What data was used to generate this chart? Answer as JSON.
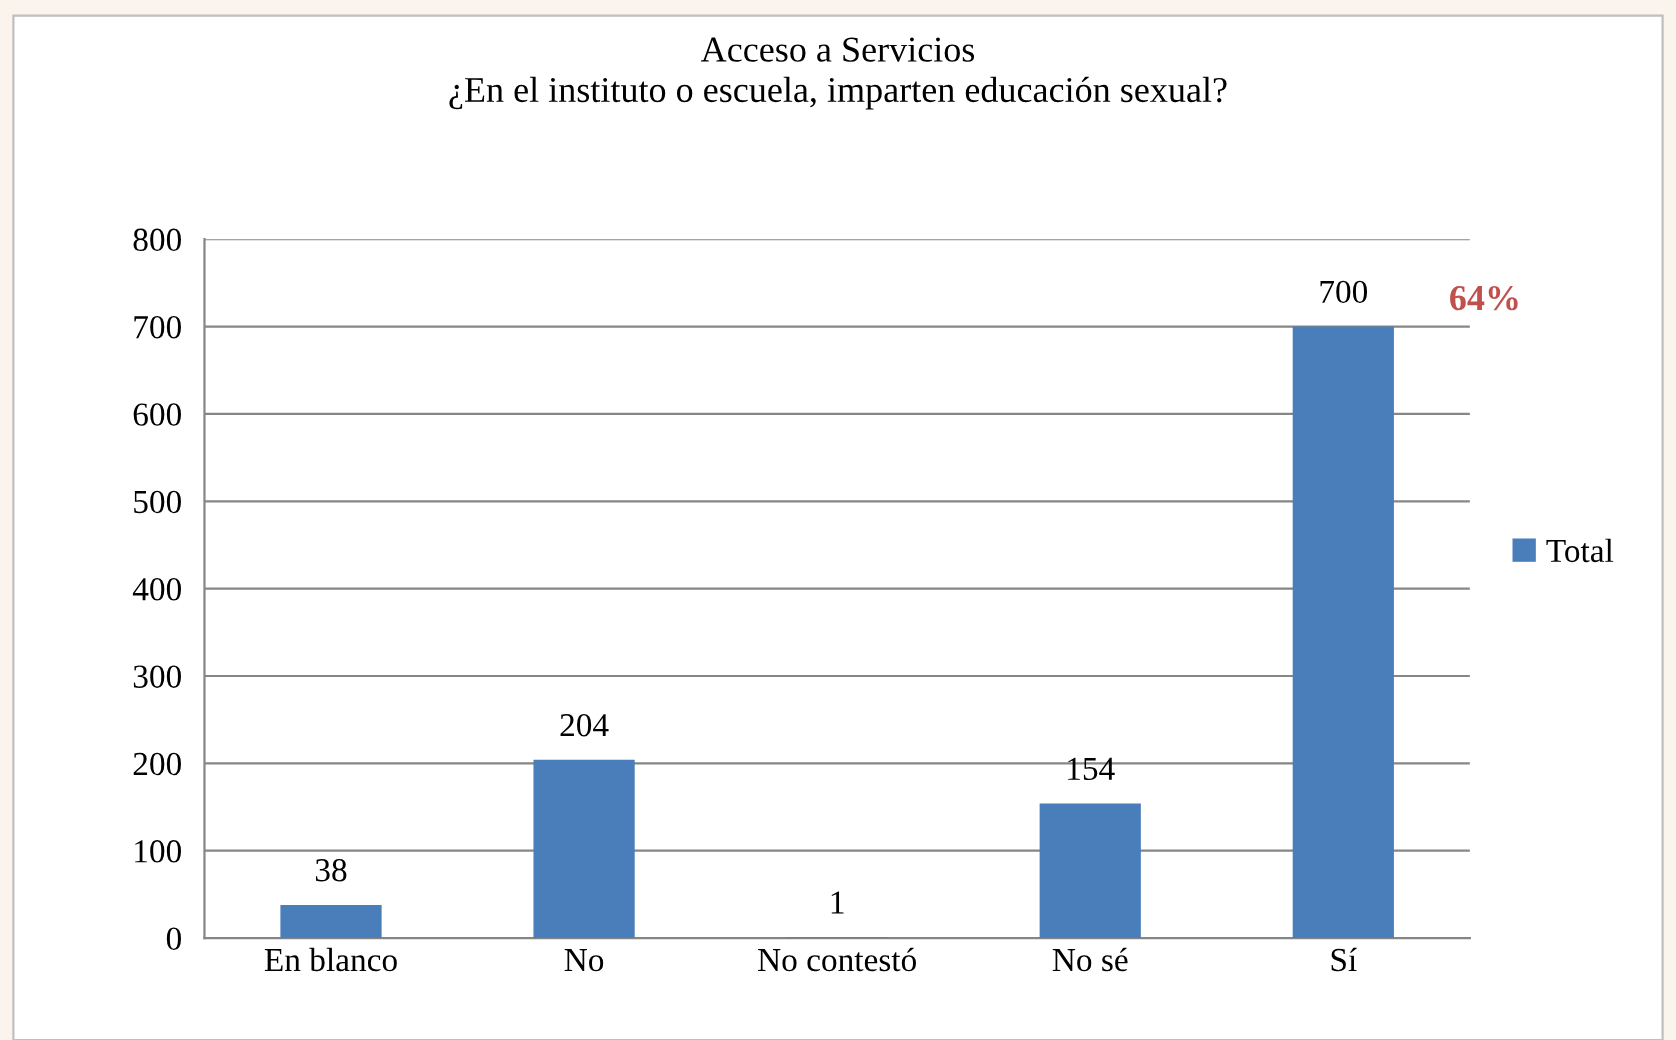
{
  "chart_data": {
    "type": "bar",
    "title": "Acceso a Servicios\n¿En el instituto o escuela, imparten educación sexual?",
    "categories": [
      "En blanco",
      "No",
      "No contestó",
      "No sé",
      "Sí"
    ],
    "series": [
      {
        "name": "Total",
        "color": "#4a7ebb",
        "values": [
          38,
          204,
          1,
          154,
          700
        ]
      }
    ],
    "ylim": [
      0,
      800
    ],
    "yticks": [
      0,
      100,
      200,
      300,
      400,
      500,
      600,
      700,
      800
    ],
    "grid": "y",
    "legend": "right",
    "data_labels": true,
    "annotations": [
      {
        "text": "64%",
        "x": "Sí",
        "y": 700
      }
    ]
  }
}
